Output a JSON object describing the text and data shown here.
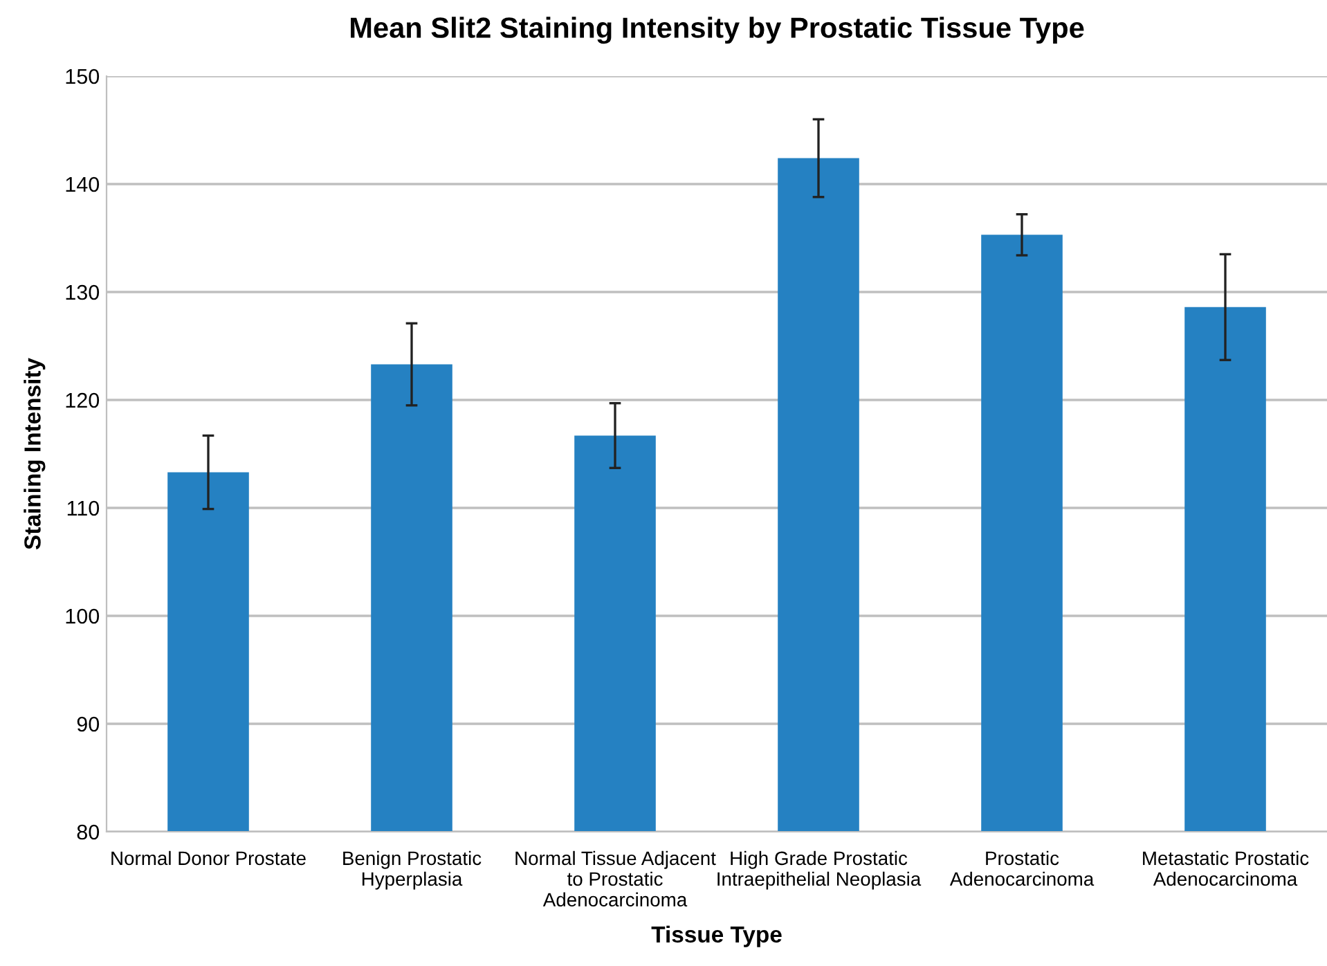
{
  "chart_data": {
    "type": "bar",
    "title": "Mean Slit2 Staining Intensity by Prostatic Tissue Type",
    "xlabel": "Tissue Type",
    "ylabel": "Staining Intensity",
    "categories": [
      "Normal Donor Prostate",
      "Benign Prostatic\nHyperplasia",
      "Normal Tissue Adjacent\nto Prostatic\nAdenocarcinoma",
      "High Grade Prostatic\nIntraepithelial Neoplasia",
      "Prostatic\nAdenocarcinoma",
      "Metastatic Prostatic\nAdenocarcinoma"
    ],
    "values": [
      113.3,
      123.3,
      116.7,
      142.4,
      135.3,
      128.6
    ],
    "errors": [
      3.4,
      3.8,
      3.0,
      3.6,
      1.9,
      4.9
    ],
    "color": "#2581c2",
    "ylim": [
      80,
      150
    ],
    "yticks": [
      80,
      90,
      100,
      110,
      120,
      130,
      140,
      150
    ],
    "grid": "y"
  }
}
